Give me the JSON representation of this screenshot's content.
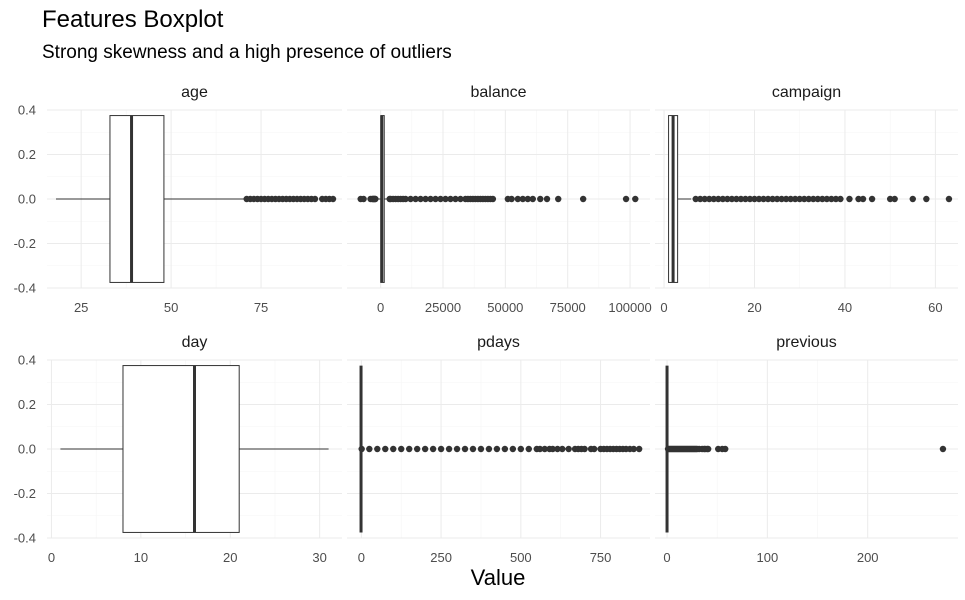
{
  "title": "Features Boxplot",
  "subtitle": "Strong skewness and a high presence of outliers",
  "chart_data": {
    "type": "boxplot",
    "facets": "3 columns x 2 rows, free x scales, shared y",
    "xlabel": "Value",
    "ylabel": "",
    "ylim": [
      -0.4,
      0.4
    ],
    "y_ticks": [
      0.4,
      0.2,
      0.0,
      -0.2,
      -0.4
    ],
    "y_tick_labels": [
      "0.4",
      "0.2",
      "0.0",
      "-0.2",
      "-0.4"
    ],
    "grid": true,
    "colors": {
      "box_fill": "#ffffff",
      "box_line": "#333333",
      "outlier": "#333333",
      "grid_major": "#ebebeb",
      "grid_minor": "#f5f5f5"
    },
    "panels": [
      {
        "name": "age",
        "xlim": [
          15.5,
          97.5
        ],
        "x_ticks": [
          25,
          50,
          75
        ],
        "stats": {
          "min": 18,
          "q1": 33,
          "median": 39,
          "q3": 48,
          "whisker_high": 70.5
        },
        "outliers": [
          71,
          72,
          73,
          74,
          75,
          76,
          77,
          78,
          79,
          80,
          81,
          82,
          83,
          84,
          85,
          86,
          87,
          88,
          89,
          90,
          92,
          93,
          94,
          95
        ]
      },
      {
        "name": "balance",
        "xlim": [
          -13500,
          108000
        ],
        "x_ticks": [
          0,
          25000,
          50000,
          75000,
          100000
        ],
        "stats": {
          "min": -1944,
          "q1": 72,
          "median": 448,
          "q3": 1428,
          "whisker_high": 3462
        },
        "outliers": [
          -8019,
          -6847,
          -4057,
          -3372,
          -3058,
          -2827,
          -2604,
          -2282,
          -2122,
          3600,
          4000,
          5000,
          6000,
          7000,
          8000,
          9000,
          10000,
          12000,
          14000,
          16000,
          18000,
          20000,
          22000,
          24000,
          26000,
          28000,
          30000,
          32000,
          34000,
          35000,
          36000,
          37000,
          38000,
          39000,
          40000,
          41000,
          42000,
          43000,
          44000,
          45000,
          51000,
          52500,
          55000,
          57000,
          59000,
          61000,
          64000,
          66700,
          71200,
          81200,
          98400,
          102100
        ]
      },
      {
        "name": "campaign",
        "xlim": [
          -2,
          65
        ],
        "x_ticks": [
          0,
          20,
          40,
          60
        ],
        "stats": {
          "min": 1,
          "q1": 1,
          "median": 2,
          "q3": 3,
          "whisker_high": 6
        },
        "outliers": [
          7,
          8,
          9,
          10,
          11,
          12,
          13,
          14,
          15,
          16,
          17,
          18,
          19,
          20,
          21,
          22,
          23,
          24,
          25,
          26,
          27,
          28,
          29,
          30,
          31,
          32,
          33,
          34,
          35,
          36,
          37,
          38,
          39,
          41,
          43,
          44,
          46,
          50,
          51,
          55,
          58,
          63
        ]
      },
      {
        "name": "day",
        "xlim": [
          -0.5,
          32.5
        ],
        "x_ticks": [
          0,
          10,
          20,
          30
        ],
        "stats": {
          "min": 1,
          "q1": 8,
          "median": 16,
          "q3": 21,
          "whisker_high": 31
        },
        "outliers": []
      },
      {
        "name": "pdays",
        "xlim": [
          -45,
          905
        ],
        "x_ticks": [
          0,
          250,
          500,
          750
        ],
        "stats": {
          "min": -1,
          "q1": -1,
          "median": -1,
          "q3": -1,
          "whisker_high": -1
        },
        "outliers": [
          1,
          25,
          50,
          75,
          100,
          125,
          150,
          175,
          200,
          225,
          250,
          275,
          300,
          325,
          350,
          375,
          400,
          425,
          450,
          475,
          500,
          525,
          550,
          560,
          575,
          590,
          600,
          615,
          630,
          650,
          670,
          680,
          690,
          700,
          720,
          730,
          750,
          760,
          770,
          780,
          790,
          800,
          810,
          820,
          830,
          842,
          854,
          871
        ]
      },
      {
        "name": "previous",
        "xlim": [
          -12,
          290
        ],
        "x_ticks": [
          0,
          100,
          200
        ],
        "stats": {
          "min": 0,
          "q1": 0,
          "median": 0,
          "q3": 0,
          "whisker_high": 0
        },
        "outliers": [
          1,
          2,
          3,
          4,
          5,
          6,
          7,
          8,
          9,
          10,
          11,
          12,
          13,
          14,
          15,
          16,
          17,
          18,
          19,
          20,
          21,
          22,
          23,
          24,
          25,
          26,
          27,
          28,
          29,
          30,
          32,
          35,
          37,
          38,
          40,
          41,
          51,
          55,
          58,
          275
        ]
      }
    ]
  }
}
